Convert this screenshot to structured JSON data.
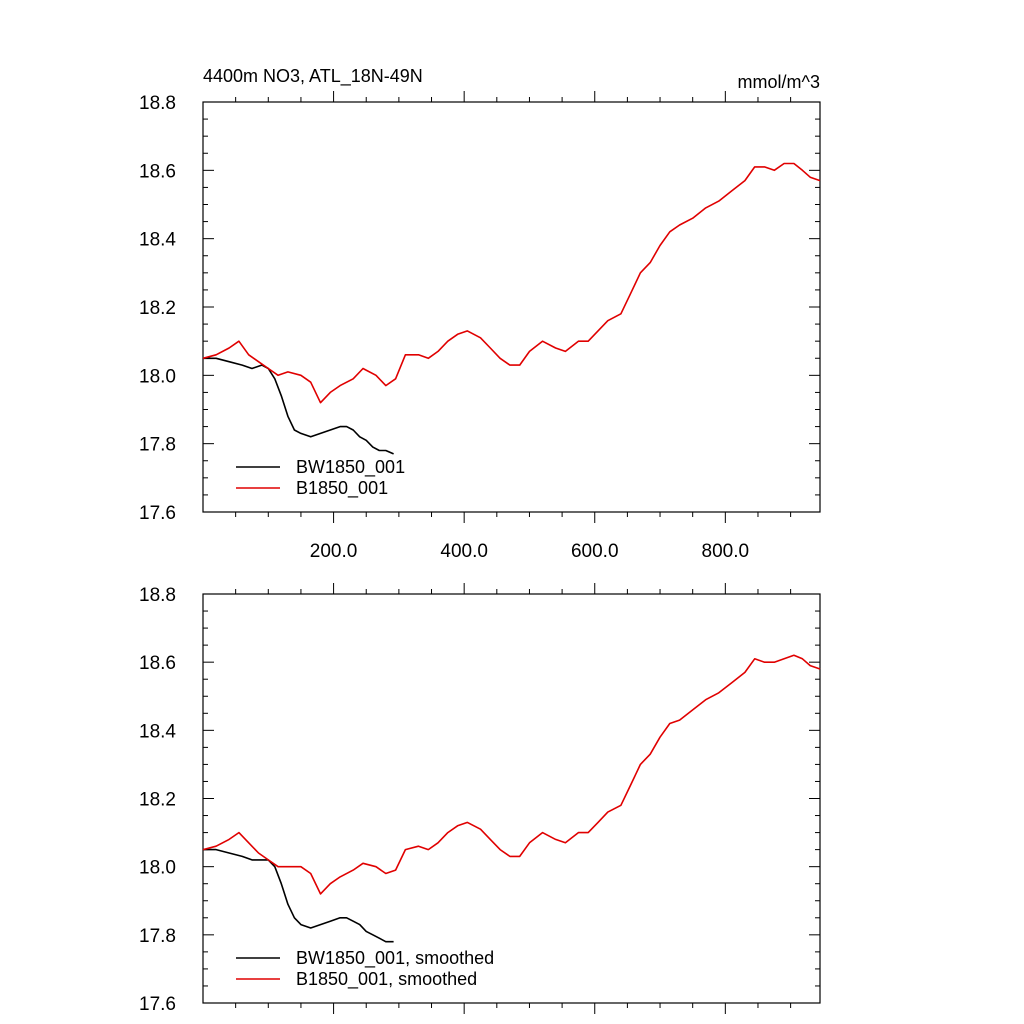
{
  "chart_data": [
    {
      "type": "line",
      "title": "4400m NO3, ATL_18N-49N",
      "units": "mmol/m^3",
      "xlabel": "",
      "ylabel": "",
      "xlim": [
        0,
        945
      ],
      "ylim": [
        17.6,
        18.8
      ],
      "x_ticks": [
        200,
        400,
        600,
        800
      ],
      "x_tick_labels": [
        "200.0",
        "400.0",
        "600.0",
        "800.0"
      ],
      "y_ticks": [
        17.6,
        17.8,
        18.0,
        18.2,
        18.4,
        18.6,
        18.8
      ],
      "y_tick_labels": [
        "17.6",
        "17.8",
        "18.0",
        "18.2",
        "18.4",
        "18.6",
        "18.8"
      ],
      "grid": false,
      "legend": "bottom-left",
      "series": [
        {
          "name": "BW1850_001",
          "color": "#000000",
          "x": [
            0,
            20,
            40,
            60,
            75,
            90,
            100,
            110,
            120,
            130,
            140,
            150,
            165,
            180,
            195,
            210,
            220,
            230,
            240,
            250,
            260,
            270,
            280,
            292
          ],
          "y": [
            18.05,
            18.05,
            18.04,
            18.03,
            18.02,
            18.03,
            18.02,
            17.99,
            17.94,
            17.88,
            17.84,
            17.83,
            17.82,
            17.83,
            17.84,
            17.85,
            17.85,
            17.84,
            17.82,
            17.81,
            17.79,
            17.78,
            17.78,
            17.77
          ]
        },
        {
          "name": "B1850_001",
          "color": "#e00000",
          "x": [
            0,
            20,
            40,
            55,
            70,
            85,
            100,
            115,
            130,
            150,
            165,
            180,
            195,
            210,
            230,
            245,
            265,
            280,
            295,
            310,
            330,
            345,
            360,
            375,
            390,
            405,
            425,
            440,
            455,
            470,
            485,
            500,
            520,
            540,
            555,
            575,
            590,
            605,
            620,
            640,
            655,
            670,
            685,
            700,
            715,
            730,
            750,
            770,
            790,
            810,
            830,
            845,
            860,
            875,
            890,
            905,
            918,
            930,
            945
          ],
          "y": [
            18.05,
            18.06,
            18.08,
            18.1,
            18.06,
            18.04,
            18.02,
            18.0,
            18.01,
            18.0,
            17.98,
            17.92,
            17.95,
            17.97,
            17.99,
            18.02,
            18.0,
            17.97,
            17.99,
            18.06,
            18.06,
            18.05,
            18.07,
            18.1,
            18.12,
            18.13,
            18.11,
            18.08,
            18.05,
            18.03,
            18.03,
            18.07,
            18.1,
            18.08,
            18.07,
            18.1,
            18.1,
            18.13,
            18.16,
            18.18,
            18.24,
            18.3,
            18.33,
            18.38,
            18.42,
            18.44,
            18.46,
            18.49,
            18.51,
            18.54,
            18.57,
            18.61,
            18.61,
            18.6,
            18.62,
            18.62,
            18.6,
            18.58,
            18.57
          ]
        }
      ]
    },
    {
      "type": "line",
      "title": "",
      "xlabel": "",
      "ylabel": "",
      "xlim": [
        0,
        945
      ],
      "ylim": [
        17.6,
        18.8
      ],
      "x_ticks": [
        200,
        400,
        600,
        800
      ],
      "x_tick_labels": [],
      "y_ticks": [
        17.6,
        17.8,
        18.0,
        18.2,
        18.4,
        18.6,
        18.8
      ],
      "y_tick_labels": [
        "17.6",
        "17.8",
        "18.0",
        "18.2",
        "18.4",
        "18.6",
        "18.8"
      ],
      "grid": false,
      "legend": "bottom-left",
      "series": [
        {
          "name": "BW1850_001, smoothed",
          "color": "#000000",
          "x": [
            0,
            20,
            40,
            60,
            75,
            90,
            100,
            110,
            120,
            130,
            140,
            150,
            165,
            180,
            195,
            210,
            220,
            230,
            240,
            250,
            260,
            270,
            280,
            292
          ],
          "y": [
            18.05,
            18.05,
            18.04,
            18.03,
            18.02,
            18.02,
            18.02,
            18.0,
            17.95,
            17.89,
            17.85,
            17.83,
            17.82,
            17.83,
            17.84,
            17.85,
            17.85,
            17.84,
            17.83,
            17.81,
            17.8,
            17.79,
            17.78,
            17.78
          ]
        },
        {
          "name": "B1850_001, smoothed",
          "color": "#e00000",
          "x": [
            0,
            20,
            40,
            55,
            70,
            85,
            100,
            115,
            130,
            150,
            165,
            180,
            195,
            210,
            230,
            245,
            265,
            280,
            295,
            310,
            330,
            345,
            360,
            375,
            390,
            405,
            425,
            440,
            455,
            470,
            485,
            500,
            520,
            540,
            555,
            575,
            590,
            605,
            620,
            640,
            655,
            670,
            685,
            700,
            715,
            730,
            750,
            770,
            790,
            810,
            830,
            845,
            860,
            875,
            890,
            905,
            918,
            930,
            945
          ],
          "y": [
            18.05,
            18.06,
            18.08,
            18.1,
            18.07,
            18.04,
            18.02,
            18.0,
            18.0,
            18.0,
            17.98,
            17.92,
            17.95,
            17.97,
            17.99,
            18.01,
            18.0,
            17.98,
            17.99,
            18.05,
            18.06,
            18.05,
            18.07,
            18.1,
            18.12,
            18.13,
            18.11,
            18.08,
            18.05,
            18.03,
            18.03,
            18.07,
            18.1,
            18.08,
            18.07,
            18.1,
            18.1,
            18.13,
            18.16,
            18.18,
            18.24,
            18.3,
            18.33,
            18.38,
            18.42,
            18.43,
            18.46,
            18.49,
            18.51,
            18.54,
            18.57,
            18.61,
            18.6,
            18.6,
            18.61,
            18.62,
            18.61,
            18.59,
            18.58
          ]
        }
      ]
    }
  ]
}
